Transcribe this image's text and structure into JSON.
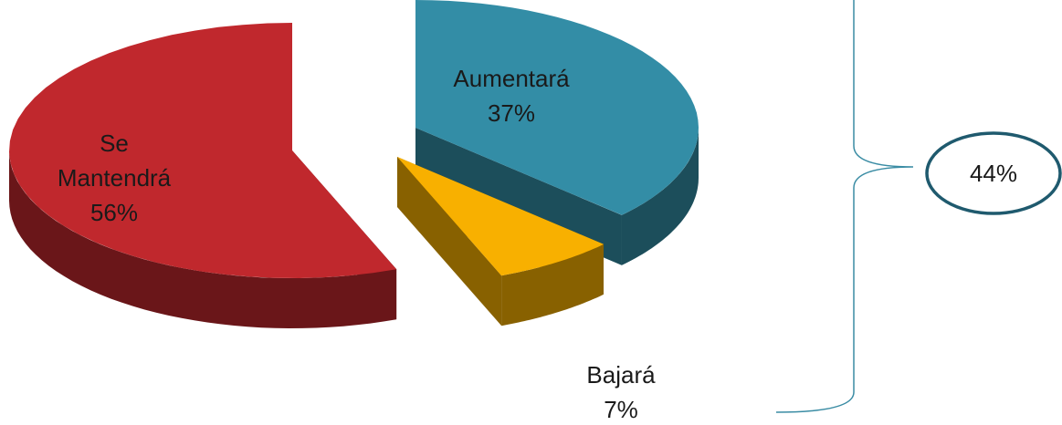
{
  "chart_data": {
    "type": "pie",
    "categories": [
      "Aumentará",
      "Bajará",
      "Se Mantendrá"
    ],
    "values": [
      37,
      7,
      56
    ],
    "value_labels": [
      "37%",
      "7%",
      "56%"
    ],
    "colors": [
      "#338da6",
      "#f8b000",
      "#c0282d"
    ],
    "annotation": "44%"
  }
}
